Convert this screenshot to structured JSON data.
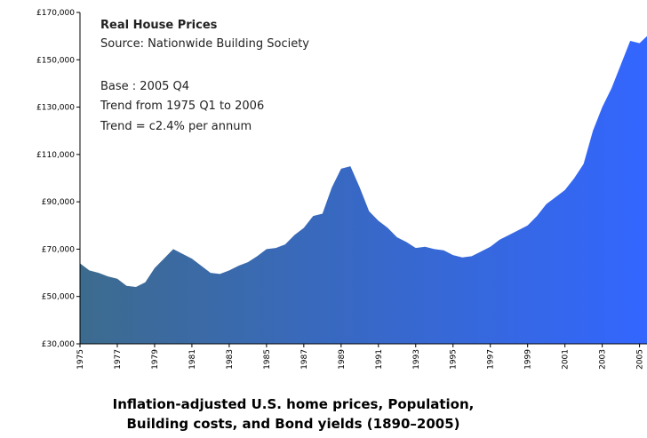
{
  "chart_data": {
    "type": "area",
    "title": "Real House Prices",
    "annotations": [
      "Source: Nationwide Building Society",
      "Base : 2005 Q4",
      "Trend from 1975 Q1 to 2006",
      "Trend = c2.4% per annum"
    ],
    "caption": [
      "Inflation-adjusted U.S. home prices, Population,",
      "Building costs, and Bond yields (1890–2005)"
    ],
    "colors": [
      "#3d6b8e",
      "#3366ff"
    ],
    "x": [
      1975,
      1975.5,
      1976,
      1976.5,
      1977,
      1977.5,
      1978,
      1978.5,
      1979,
      1979.5,
      1980,
      1980.5,
      1981,
      1981.5,
      1982,
      1982.5,
      1983,
      1983.5,
      1984,
      1984.5,
      1985,
      1985.5,
      1986,
      1986.5,
      1987,
      1987.5,
      1988,
      1988.5,
      1989,
      1989.5,
      1990,
      1990.5,
      1991,
      1991.5,
      1992,
      1992.5,
      1993,
      1993.5,
      1994,
      1994.5,
      1995,
      1995.5,
      1996,
      1996.5,
      1997,
      1997.5,
      1998,
      1998.5,
      1999,
      1999.5,
      2000,
      2000.5,
      2001,
      2001.5,
      2002,
      2002.5,
      2003,
      2003.5,
      2004,
      2004.5,
      2005,
      2005.4
    ],
    "values": [
      64000,
      61000,
      60000,
      58500,
      57500,
      54500,
      54000,
      56000,
      62000,
      66000,
      70000,
      68000,
      66000,
      63000,
      60000,
      59500,
      61000,
      63000,
      64500,
      67000,
      70000,
      70500,
      72000,
      76000,
      79000,
      84000,
      85000,
      96000,
      104000,
      105000,
      96000,
      86000,
      82000,
      79000,
      75000,
      73000,
      70500,
      71000,
      70000,
      69500,
      67500,
      66500,
      67000,
      69000,
      71000,
      74000,
      76000,
      78000,
      80000,
      84000,
      89000,
      92000,
      95000,
      100000,
      106000,
      120000,
      130000,
      138000,
      148000,
      158000,
      157000,
      160000
    ],
    "xlim": [
      1975,
      2005.4
    ],
    "xticks": [
      1975,
      1977,
      1979,
      1981,
      1983,
      1985,
      1987,
      1989,
      1991,
      1993,
      1995,
      1997,
      1999,
      2001,
      2003,
      2005
    ],
    "ylim": [
      30000,
      170000
    ],
    "yticks": [
      {
        "value": 30000,
        "label": "£30,000"
      },
      {
        "value": 50000,
        "label": "£50,000"
      },
      {
        "value": 70000,
        "label": "£70,000"
      },
      {
        "value": 90000,
        "label": "£90,000"
      },
      {
        "value": 110000,
        "label": "£110,000"
      },
      {
        "value": 130000,
        "label": "£130,000"
      },
      {
        "value": 150000,
        "label": "£150,000"
      },
      {
        "value": 170000,
        "label": "£170,000"
      }
    ]
  }
}
